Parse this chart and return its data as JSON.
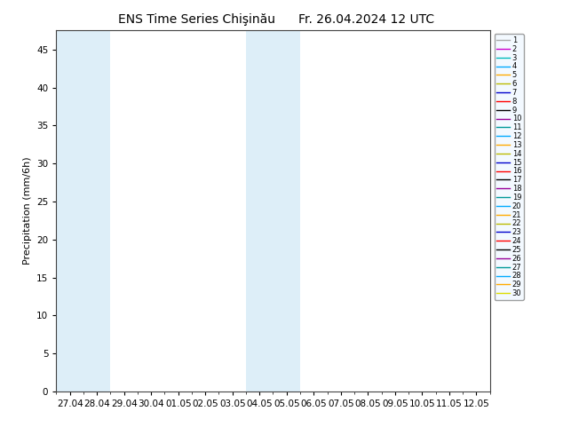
{
  "title_left": "ENS Time Series Chişinău",
  "title_right": "Fr. 26.04.2024 12 UTC",
  "ylabel": "Precipitation (mm/6h)",
  "ylim": [
    0,
    47.5
  ],
  "yticks": [
    0,
    5,
    10,
    15,
    20,
    25,
    30,
    35,
    40,
    45
  ],
  "x_labels": [
    "27.04",
    "28.04",
    "29.04",
    "30.04",
    "01.05",
    "02.05",
    "03.05",
    "04.05",
    "05.05",
    "06.05",
    "07.05",
    "08.05",
    "09.05",
    "10.05",
    "11.05",
    "12.05"
  ],
  "n_members": 30,
  "member_colors": [
    "#aaaaaa",
    "#cc00cc",
    "#00bbbb",
    "#00aaff",
    "#ffaa00",
    "#bbbb00",
    "#0000cc",
    "#ff0000",
    "#000000",
    "#990099",
    "#009999",
    "#00aaff",
    "#ffaa00",
    "#bbbb00",
    "#0000cc",
    "#ff0000",
    "#000000",
    "#990099",
    "#009999",
    "#00aaff",
    "#ffaa00",
    "#bbbb00",
    "#0000cc",
    "#ff0000",
    "#000000",
    "#990099",
    "#009999",
    "#00aaff",
    "#ffaa00",
    "#dddd00"
  ],
  "band_color": "#ddeef8",
  "background_color": "#ffffff",
  "title_fontsize": 10,
  "axis_fontsize": 8,
  "tick_fontsize": 7.5,
  "legend_fontsize": 6
}
